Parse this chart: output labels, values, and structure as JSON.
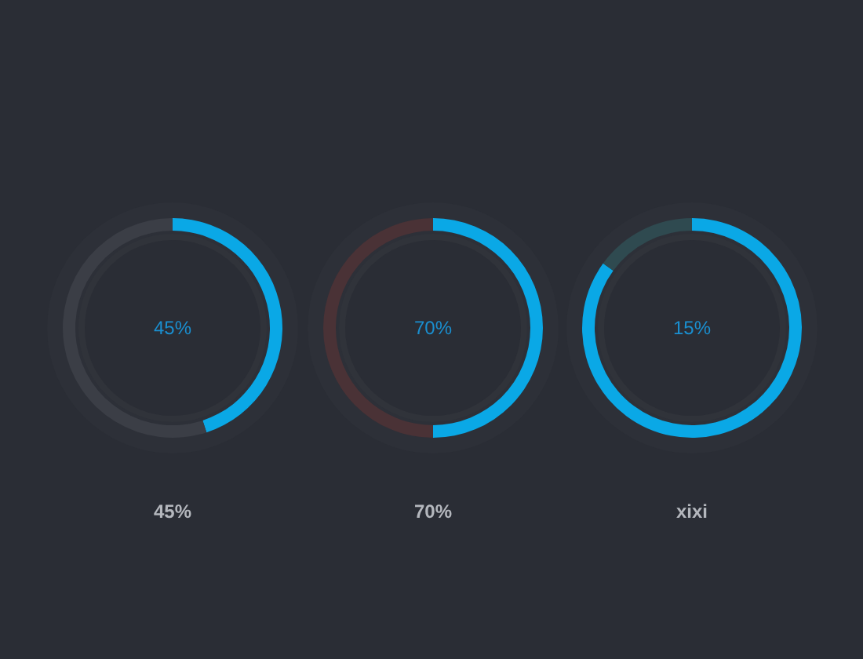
{
  "chart_data": [
    {
      "type": "donut",
      "title": "45%",
      "annotations": [
        "45%"
      ],
      "categories": [
        null,
        null
      ],
      "values": [
        45,
        55
      ],
      "colors": [
        "#0aa8e6",
        "#3b3e46"
      ]
    },
    {
      "type": "donut",
      "title": "70%",
      "annotations": [
        "70%"
      ],
      "categories": [
        null,
        null
      ],
      "values": [
        50,
        50
      ],
      "colors": [
        "#0aa8e6",
        "#4a3236"
      ]
    },
    {
      "type": "donut",
      "title": "15%",
      "annotations": [
        "xixi"
      ],
      "categories": [
        null,
        null
      ],
      "values": [
        85,
        15
      ],
      "colors": [
        "#0aa8e6",
        "#2f4a50"
      ]
    }
  ]
}
